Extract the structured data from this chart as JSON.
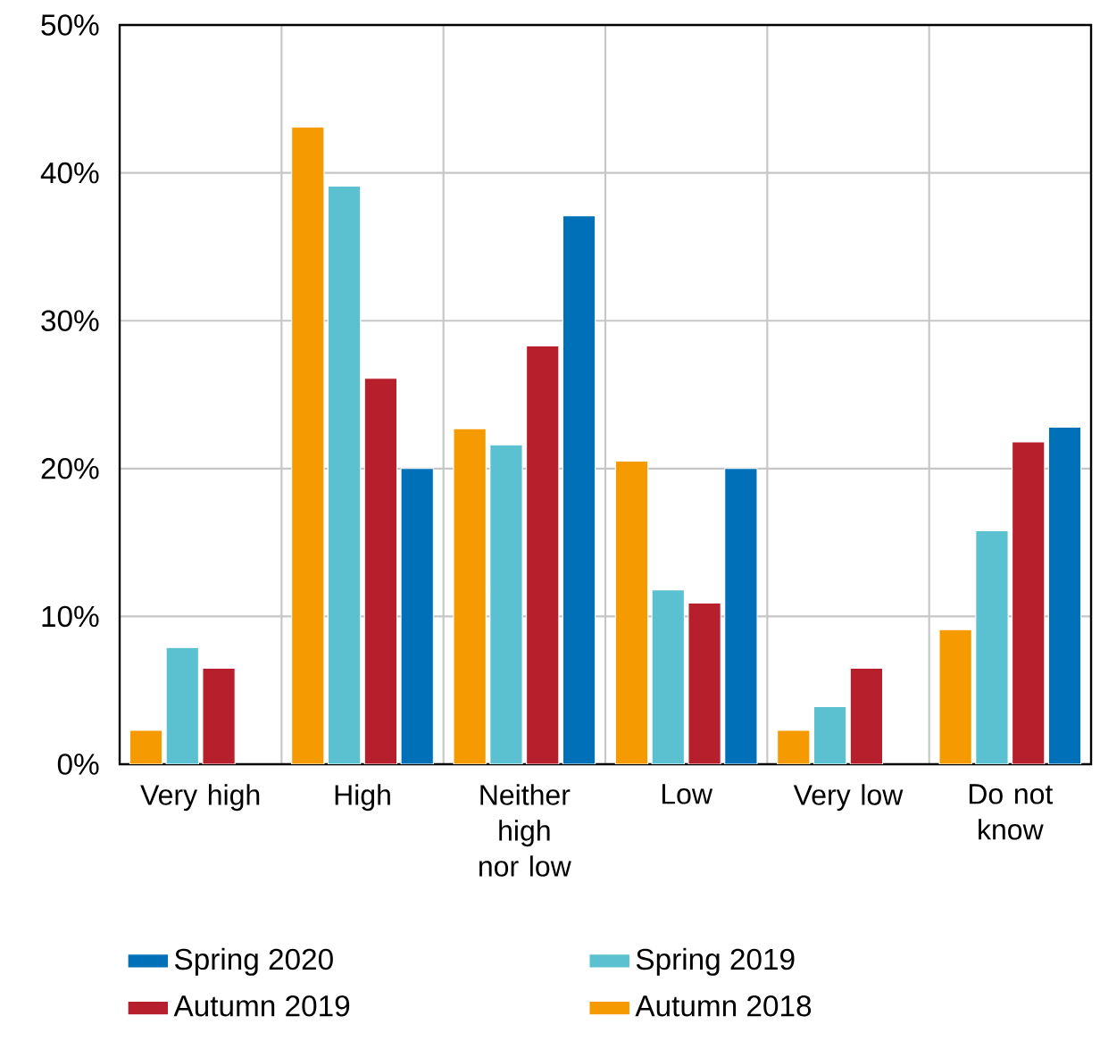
{
  "chart_data": {
    "type": "bar",
    "categories": [
      "Very high",
      "High",
      "Neither high nor low",
      "Low",
      "Very low",
      "Do not know"
    ],
    "series": [
      {
        "name": "Autumn 2018",
        "color": "#f59a00",
        "values": [
          2.3,
          43.1,
          22.7,
          20.5,
          2.3,
          9.1
        ]
      },
      {
        "name": "Spring 2019",
        "color": "#5bc0cf",
        "values": [
          7.9,
          39.1,
          21.6,
          11.8,
          3.9,
          15.8
        ]
      },
      {
        "name": "Autumn 2019",
        "color": "#b81f2d",
        "values": [
          6.5,
          26.1,
          28.3,
          10.9,
          6.5,
          21.8
        ]
      },
      {
        "name": "Spring 2020",
        "color": "#0070b8",
        "values": [
          null,
          20.0,
          37.1,
          20.0,
          null,
          22.8
        ]
      }
    ],
    "ylim": [
      0,
      50
    ],
    "yticks": [
      {
        "value": 0,
        "label": "0%"
      },
      {
        "value": 10,
        "label": "10%"
      },
      {
        "value": 20,
        "label": "20%"
      },
      {
        "value": 30,
        "label": "30%"
      },
      {
        "value": 40,
        "label": "40%"
      },
      {
        "value": 50,
        "label": "50%"
      }
    ],
    "grid": true,
    "legend": "bottom"
  }
}
